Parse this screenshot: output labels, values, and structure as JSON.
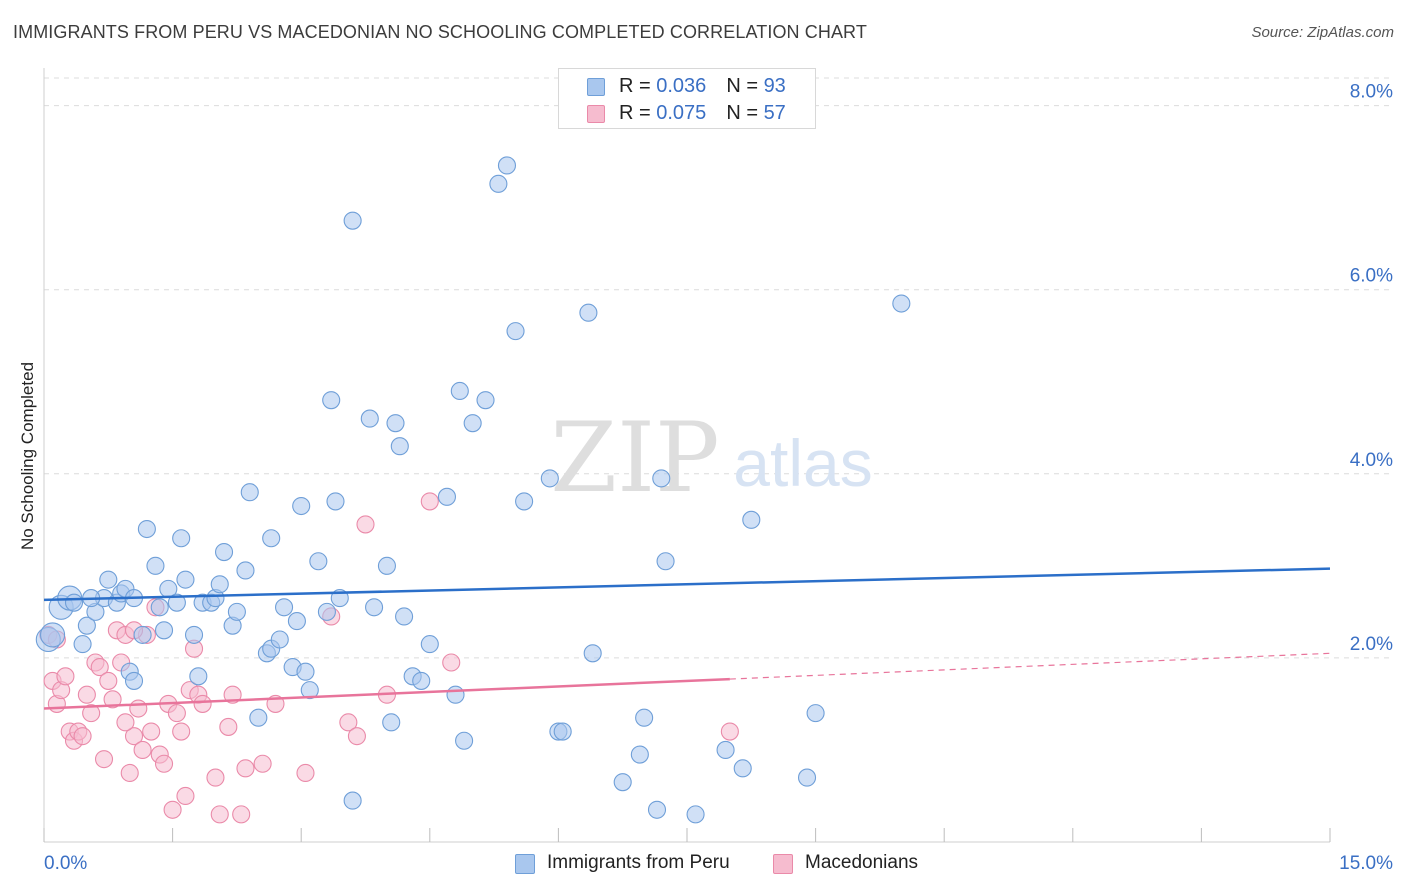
{
  "title": "IMMIGRANTS FROM PERU VS MACEDONIAN NO SCHOOLING COMPLETED CORRELATION CHART",
  "source": "Source: ZipAtlas.com",
  "watermark": {
    "zip": "ZIP",
    "atlas": "atlas"
  },
  "legend_top": [
    {
      "r_label": "R = ",
      "r_value": "0.036",
      "n_label": "N = ",
      "n_value": "93"
    },
    {
      "r_label": "R = ",
      "r_value": "0.075",
      "n_label": "N = ",
      "n_value": "57"
    }
  ],
  "legend_bottom": [
    "Immigrants from Peru",
    "Macedonians"
  ],
  "colors": {
    "peru_fill": "#a9c7ee",
    "peru_stroke": "#6f9fd8",
    "peru_line": "#2b6fc9",
    "mac_fill": "#f6bccf",
    "mac_stroke": "#ea8aa9",
    "mac_line": "#e8749b",
    "tick_label": "#3a6fc4",
    "grid": "#dcdcdc"
  },
  "chart_data": {
    "type": "scatter",
    "title": "IMMIGRANTS FROM PERU VS MACEDONIAN NO SCHOOLING COMPLETED CORRELATION CHART",
    "xlabel": "",
    "ylabel": "No Schooling Completed",
    "xlim": [
      0,
      15
    ],
    "ylim": [
      0,
      8.3
    ],
    "x_tick_labels": [
      "0.0%",
      "15.0%"
    ],
    "y_ticks": [
      2,
      4,
      6,
      8
    ],
    "y_tick_labels": [
      "2.0%",
      "4.0%",
      "6.0%",
      "8.0%"
    ],
    "grid": true,
    "series": [
      {
        "name": "Immigrants from Peru",
        "R": 0.036,
        "N": 93,
        "trend": {
          "x": [
            0,
            15
          ],
          "y": [
            2.63,
            2.97
          ]
        },
        "points": [
          [
            0.05,
            2.2
          ],
          [
            0.1,
            2.25
          ],
          [
            0.2,
            2.55
          ],
          [
            0.3,
            2.65
          ],
          [
            0.35,
            2.6
          ],
          [
            0.45,
            2.15
          ],
          [
            0.5,
            2.35
          ],
          [
            0.6,
            2.5
          ],
          [
            0.7,
            2.65
          ],
          [
            0.75,
            2.85
          ],
          [
            0.85,
            2.6
          ],
          [
            0.9,
            2.7
          ],
          [
            0.95,
            2.75
          ],
          [
            1.0,
            1.85
          ],
          [
            1.05,
            1.75
          ],
          [
            1.15,
            2.25
          ],
          [
            1.2,
            3.4
          ],
          [
            1.3,
            3.0
          ],
          [
            1.35,
            2.55
          ],
          [
            1.4,
            2.3
          ],
          [
            1.45,
            2.75
          ],
          [
            1.55,
            2.6
          ],
          [
            1.6,
            3.3
          ],
          [
            1.65,
            2.85
          ],
          [
            1.75,
            2.25
          ],
          [
            1.8,
            1.8
          ],
          [
            1.85,
            2.6
          ],
          [
            1.95,
            2.6
          ],
          [
            2.0,
            2.65
          ],
          [
            2.05,
            2.8
          ],
          [
            2.1,
            3.15
          ],
          [
            2.2,
            2.35
          ],
          [
            2.25,
            2.5
          ],
          [
            2.35,
            2.95
          ],
          [
            2.4,
            3.8
          ],
          [
            2.5,
            1.35
          ],
          [
            2.6,
            2.05
          ],
          [
            2.65,
            2.1
          ],
          [
            2.65,
            3.3
          ],
          [
            2.75,
            2.2
          ],
          [
            2.8,
            2.55
          ],
          [
            2.9,
            1.9
          ],
          [
            2.95,
            2.4
          ],
          [
            3.0,
            3.65
          ],
          [
            3.05,
            1.85
          ],
          [
            3.1,
            1.65
          ],
          [
            3.2,
            3.05
          ],
          [
            3.3,
            2.5
          ],
          [
            3.35,
            4.8
          ],
          [
            3.4,
            3.7
          ],
          [
            3.45,
            2.65
          ],
          [
            3.6,
            0.45
          ],
          [
            3.6,
            6.75
          ],
          [
            3.8,
            4.6
          ],
          [
            3.85,
            2.55
          ],
          [
            4.0,
            3.0
          ],
          [
            4.05,
            1.3
          ],
          [
            4.1,
            4.55
          ],
          [
            4.15,
            4.3
          ],
          [
            4.2,
            2.45
          ],
          [
            4.3,
            1.8
          ],
          [
            4.4,
            1.75
          ],
          [
            4.5,
            2.15
          ],
          [
            4.7,
            3.75
          ],
          [
            4.8,
            1.6
          ],
          [
            4.85,
            4.9
          ],
          [
            4.9,
            1.1
          ],
          [
            5.0,
            4.55
          ],
          [
            5.15,
            4.8
          ],
          [
            5.3,
            7.15
          ],
          [
            5.4,
            7.35
          ],
          [
            5.6,
            3.7
          ],
          [
            5.9,
            3.95
          ],
          [
            6.0,
            1.2
          ],
          [
            6.05,
            1.2
          ],
          [
            6.35,
            5.75
          ],
          [
            6.4,
            2.05
          ],
          [
            6.75,
            0.65
          ],
          [
            6.95,
            0.95
          ],
          [
            7.0,
            1.35
          ],
          [
            7.15,
            0.35
          ],
          [
            7.2,
            3.95
          ],
          [
            7.25,
            3.05
          ],
          [
            7.6,
            0.3
          ],
          [
            7.95,
            1.0
          ],
          [
            8.15,
            0.8
          ],
          [
            8.25,
            3.5
          ],
          [
            8.9,
            0.7
          ],
          [
            9.0,
            1.4
          ],
          [
            10.0,
            5.85
          ],
          [
            5.5,
            5.55
          ],
          [
            1.05,
            2.65
          ],
          [
            0.55,
            2.65
          ]
        ]
      },
      {
        "name": "Macedonians",
        "R": 0.075,
        "N": 57,
        "trend": {
          "x": [
            0,
            8
          ],
          "y": [
            1.45,
            1.77
          ]
        },
        "trend_dashed": {
          "x": [
            8,
            15
          ],
          "y": [
            1.77,
            2.05
          ]
        },
        "points": [
          [
            0.05,
            2.25
          ],
          [
            0.1,
            1.75
          ],
          [
            0.15,
            1.5
          ],
          [
            0.2,
            1.65
          ],
          [
            0.25,
            1.8
          ],
          [
            0.3,
            1.2
          ],
          [
            0.35,
            1.1
          ],
          [
            0.4,
            1.2
          ],
          [
            0.45,
            1.15
          ],
          [
            0.5,
            1.6
          ],
          [
            0.55,
            1.4
          ],
          [
            0.6,
            1.95
          ],
          [
            0.65,
            1.9
          ],
          [
            0.7,
            0.9
          ],
          [
            0.75,
            1.75
          ],
          [
            0.8,
            1.55
          ],
          [
            0.85,
            2.3
          ],
          [
            0.9,
            1.95
          ],
          [
            0.95,
            2.25
          ],
          [
            1.0,
            0.75
          ],
          [
            1.05,
            1.15
          ],
          [
            1.1,
            1.45
          ],
          [
            1.15,
            1.0
          ],
          [
            1.2,
            2.25
          ],
          [
            1.25,
            1.2
          ],
          [
            1.3,
            2.55
          ],
          [
            1.35,
            0.95
          ],
          [
            1.4,
            0.85
          ],
          [
            1.45,
            1.5
          ],
          [
            1.5,
            0.35
          ],
          [
            1.55,
            1.4
          ],
          [
            1.6,
            1.2
          ],
          [
            1.65,
            0.5
          ],
          [
            1.7,
            1.65
          ],
          [
            1.75,
            2.1
          ],
          [
            1.8,
            1.6
          ],
          [
            1.85,
            1.5
          ],
          [
            2.0,
            0.7
          ],
          [
            2.05,
            0.3
          ],
          [
            2.15,
            1.25
          ],
          [
            2.2,
            1.6
          ],
          [
            2.3,
            0.3
          ],
          [
            2.35,
            0.8
          ],
          [
            2.55,
            0.85
          ],
          [
            2.7,
            1.5
          ],
          [
            3.05,
            0.75
          ],
          [
            3.35,
            2.45
          ],
          [
            3.55,
            1.3
          ],
          [
            3.65,
            1.15
          ],
          [
            3.75,
            3.45
          ],
          [
            4.0,
            1.6
          ],
          [
            4.5,
            3.7
          ],
          [
            4.75,
            1.95
          ],
          [
            8.0,
            1.2
          ],
          [
            0.15,
            2.2
          ],
          [
            0.95,
            1.3
          ],
          [
            1.05,
            2.3
          ]
        ]
      }
    ]
  }
}
